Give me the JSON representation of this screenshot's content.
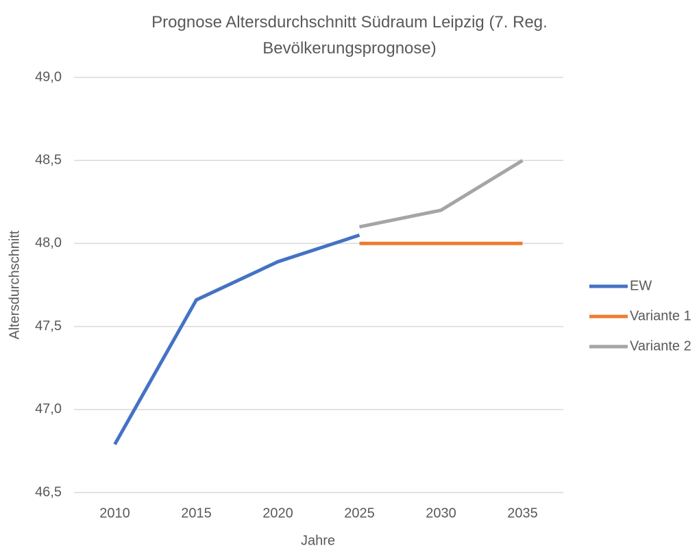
{
  "chart_data": {
    "type": "line",
    "title": "Prognose Altersdurchschnitt Südraum Leipzig (7. Reg. Bevölkerungsprognose)",
    "x_label": "Jahre",
    "y_label": "Altersdurchschnitt",
    "categories": [
      "2010",
      "2015",
      "2020",
      "2025",
      "2030",
      "2035"
    ],
    "series": [
      {
        "name": "EW",
        "color": "#4472c4",
        "values": [
          46.79,
          47.66,
          47.89,
          48.05,
          null,
          null
        ]
      },
      {
        "name": "Variante 1",
        "color": "#ed7d31",
        "values": [
          null,
          null,
          null,
          48.0,
          48.0,
          48.0
        ]
      },
      {
        "name": "Variante 2",
        "color": "#a5a5a5",
        "values": [
          null,
          null,
          null,
          48.1,
          48.2,
          48.5
        ]
      }
    ],
    "ylim": [
      46.5,
      49.0
    ],
    "yticks": [
      {
        "value": 46.5,
        "label": "46,5"
      },
      {
        "value": 47.0,
        "label": "47,0"
      },
      {
        "value": 47.5,
        "label": "47,5"
      },
      {
        "value": 48.0,
        "label": "48,0"
      },
      {
        "value": 48.5,
        "label": "48,5"
      },
      {
        "value": 49.0,
        "label": "49,0"
      }
    ],
    "grid": true,
    "legend": "right"
  }
}
